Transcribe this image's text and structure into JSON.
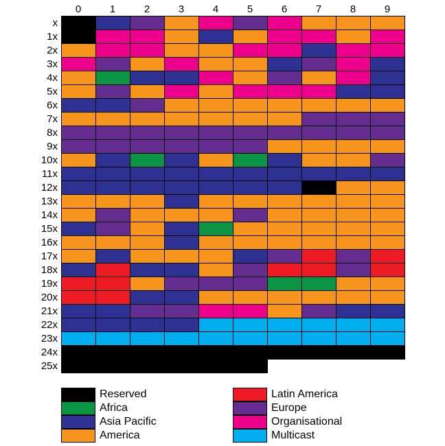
{
  "columns": [
    "0",
    "1",
    "2",
    "3",
    "4",
    "5",
    "6",
    "7",
    "8",
    "9"
  ],
  "categories": {
    "R": {
      "label": "Reserved",
      "color": "#000000"
    },
    "F": {
      "label": "Africa",
      "color": "#0B9444"
    },
    "P": {
      "label": "Asia Pacific",
      "color": "#2E3192"
    },
    "A": {
      "label": "America",
      "color": "#F7941D"
    },
    "L": {
      "label": "Latin America",
      "color": "#ED1C24"
    },
    "E": {
      "label": "Europe",
      "color": "#662D91"
    },
    "O": {
      "label": "Organisational",
      "color": "#EC008C"
    },
    "M": {
      "label": "Multicast",
      "color": "#00AEEF"
    }
  },
  "legend": {
    "left": [
      "R",
      "F",
      "P",
      "A"
    ],
    "right": [
      "L",
      "E",
      "O",
      "M"
    ]
  },
  "rows": [
    {
      "label": "x",
      "cells": [
        "R",
        "P",
        "E",
        "A",
        "O",
        "E",
        "O",
        "A",
        "A",
        "A"
      ]
    },
    {
      "label": "1x",
      "cells": [
        "R",
        "O",
        "O",
        "A",
        "P",
        "A",
        "O",
        "O",
        "A",
        "O"
      ]
    },
    {
      "label": "2x",
      "cells": [
        "A",
        "O",
        "O",
        "A",
        "A",
        "O",
        "O",
        "P",
        "O",
        "O"
      ]
    },
    {
      "label": "3x",
      "cells": [
        "O",
        "E",
        "A",
        "O",
        "A",
        "A",
        "P",
        "E",
        "O",
        "P"
      ]
    },
    {
      "label": "4x",
      "cells": [
        "A",
        "F",
        "P",
        "P",
        "O",
        "A",
        "E",
        "A",
        "O",
        "P"
      ]
    },
    {
      "label": "5x",
      "cells": [
        "A",
        "E",
        "A",
        "O",
        "A",
        "O",
        "O",
        "O",
        "P",
        "P"
      ]
    },
    {
      "label": "6x",
      "cells": [
        "P",
        "P",
        "E",
        "A",
        "A",
        "A",
        "A",
        "A",
        "A",
        "A"
      ]
    },
    {
      "label": "7x",
      "cells": [
        "A",
        "A",
        "A",
        "A",
        "A",
        "A",
        "A",
        "E",
        "E",
        "E"
      ]
    },
    {
      "label": "8x",
      "cells": [
        "E",
        "E",
        "E",
        "E",
        "E",
        "E",
        "E",
        "E",
        "E",
        "E"
      ]
    },
    {
      "label": "9x",
      "cells": [
        "E",
        "E",
        "E",
        "E",
        "E",
        "E",
        "A",
        "A",
        "A",
        "A"
      ]
    },
    {
      "label": "10x",
      "cells": [
        "A",
        "P",
        "F",
        "P",
        "A",
        "F",
        "P",
        "A",
        "A",
        "E"
      ]
    },
    {
      "label": "11x",
      "cells": [
        "P",
        "P",
        "P",
        "P",
        "P",
        "P",
        "P",
        "P",
        "P",
        "P"
      ]
    },
    {
      "label": "12x",
      "cells": [
        "P",
        "P",
        "P",
        "P",
        "P",
        "P",
        "P",
        "R",
        "A",
        "A"
      ]
    },
    {
      "label": "13x",
      "cells": [
        "A",
        "A",
        "A",
        "P",
        "A",
        "A",
        "A",
        "A",
        "A",
        "A"
      ]
    },
    {
      "label": "14x",
      "cells": [
        "A",
        "E",
        "A",
        "A",
        "A",
        "E",
        "A",
        "A",
        "A",
        "A"
      ]
    },
    {
      "label": "15x",
      "cells": [
        "P",
        "E",
        "A",
        "P",
        "F",
        "A",
        "A",
        "A",
        "A",
        "A"
      ]
    },
    {
      "label": "16x",
      "cells": [
        "A",
        "A",
        "A",
        "P",
        "A",
        "A",
        "A",
        "A",
        "A",
        "A"
      ]
    },
    {
      "label": "17x",
      "cells": [
        "A",
        "P",
        "A",
        "A",
        "A",
        "P",
        "E",
        "L",
        "E",
        "L"
      ]
    },
    {
      "label": "18x",
      "cells": [
        "P",
        "L",
        "P",
        "P",
        "A",
        "E",
        "L",
        "L",
        "E",
        "L"
      ]
    },
    {
      "label": "19x",
      "cells": [
        "L",
        "L",
        "A",
        "E",
        "E",
        "E",
        "F",
        "F",
        "A",
        "A"
      ]
    },
    {
      "label": "20x",
      "cells": [
        "L",
        "L",
        "P",
        "P",
        "A",
        "A",
        "A",
        "A",
        "A",
        "A"
      ]
    },
    {
      "label": "21x",
      "cells": [
        "P",
        "P",
        "E",
        "E",
        "O",
        "O",
        "A",
        "E",
        "P",
        "P"
      ]
    },
    {
      "label": "22x",
      "cells": [
        "P",
        "P",
        "P",
        "P",
        "M",
        "M",
        "M",
        "M",
        "M",
        "M"
      ]
    },
    {
      "label": "23x",
      "cells": [
        "M",
        "M",
        "M",
        "M",
        "M",
        "M",
        "M",
        "M",
        "M",
        "M"
      ]
    },
    {
      "label": "24x",
      "cells": [
        "R",
        "R",
        "R",
        "R",
        "R",
        "R",
        "R",
        "R",
        "R",
        "R"
      ]
    },
    {
      "label": "25x",
      "cells": [
        "R",
        "R",
        "R",
        "R",
        "R",
        "R",
        null,
        null,
        null,
        null
      ]
    }
  ]
}
